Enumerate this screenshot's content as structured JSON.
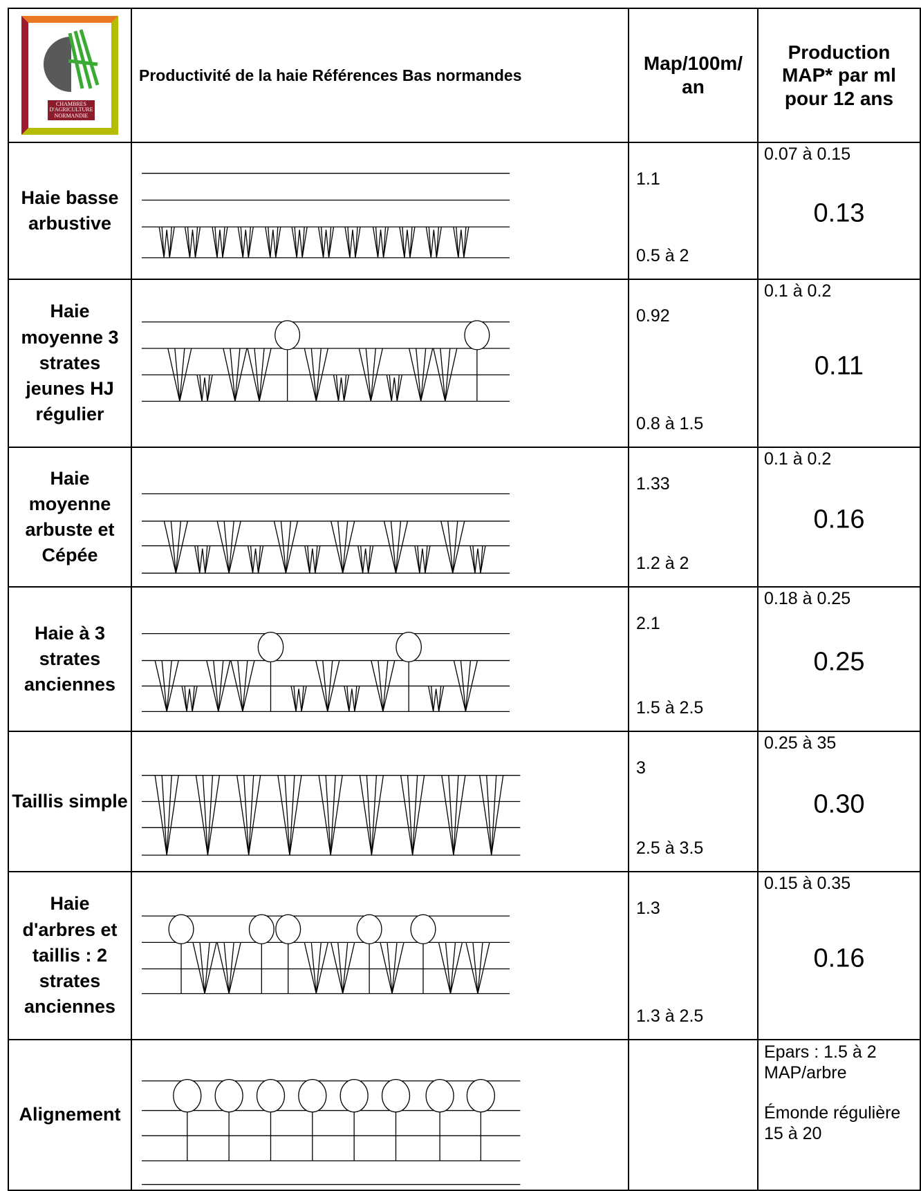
{
  "header": {
    "logo": [
      "CHAMBRES",
      "D'AGRICULTURE",
      "NORMANDIE"
    ],
    "title": "Productivité de la haie Références Bas normandes",
    "col_map": "Map/100m/ an",
    "col_production": "Production MAP* par ml pour 12 ans"
  },
  "rows": [
    {
      "name": "Haie basse arbustive",
      "map": "1.1",
      "map_range": "0.5 à 2",
      "production_range": "0.07 à 0.15",
      "production": "0.13"
    },
    {
      "name": "Haie moyenne 3 strates jeunes HJ régulier",
      "map": "0.92",
      "map_range": "0.8 à 1.5",
      "production_range": "0.1 à 0.2",
      "production": "0.11"
    },
    {
      "name": "Haie moyenne arbuste et Cépée",
      "map": "1.33",
      "map_range": "1.2 à 2",
      "production_range": "0.1 à 0.2",
      "production": "0.16"
    },
    {
      "name": "Haie à 3 strates anciennes",
      "map": "2.1",
      "map_range": "1.5 à 2.5",
      "production_range": "0.18 à 0.25",
      "production": "0.25"
    },
    {
      "name": "Taillis simple",
      "map": "3",
      "map_range": "2.5 à 3.5",
      "production_range": "0.25 à 35",
      "production": "0.30"
    },
    {
      "name": "Haie d'arbres et taillis : 2 strates anciennes",
      "map": "1.3",
      "map_range": "1.3 à 2.5",
      "production_range": "0.15 à 0.35",
      "production": "0.16"
    },
    {
      "name": "Alignement",
      "production_notes": [
        "Epars : 1.5 à 2 MAP/arbre",
        "Émonde régulière 15 à 20"
      ]
    }
  ]
}
